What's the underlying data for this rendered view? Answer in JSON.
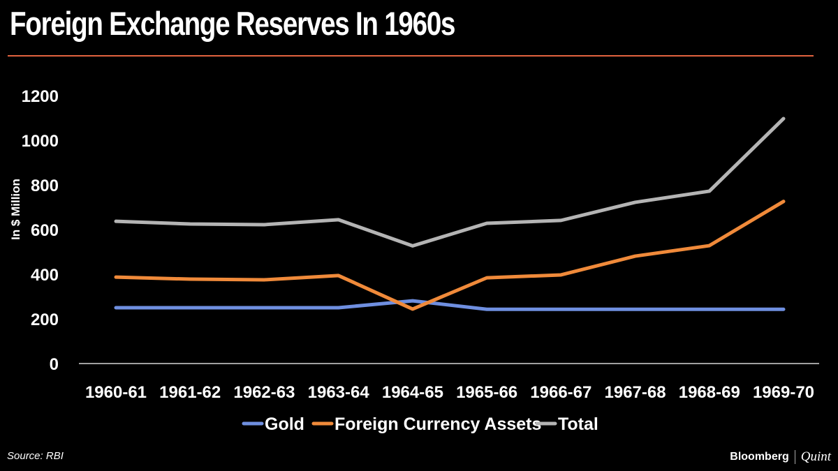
{
  "header": {
    "title": "Foreign Exchange Reserves In 1960s"
  },
  "footer": {
    "source": "Source: RBI",
    "brand_left": "Bloomberg",
    "brand_right": "Quint"
  },
  "colors": {
    "gold": "#6f8fe0",
    "fca": "#f08a3a",
    "total": "#b4b4b4",
    "rule": "#e2633f",
    "background": "#000000"
  },
  "chart_data": {
    "type": "line",
    "title": "Foreign Exchange Reserves In 1960s",
    "xlabel": "",
    "ylabel": "In $ Million",
    "ylim": [
      0,
      1200
    ],
    "yticks": [
      0,
      200,
      400,
      600,
      800,
      1000,
      1200
    ],
    "grid": false,
    "legend_position": "bottom",
    "categories": [
      "1960-61",
      "1961-62",
      "1962-63",
      "1963-64",
      "1964-65",
      "1965-66",
      "1966-67",
      "1967-68",
      "1968-69",
      "1969-70"
    ],
    "series": [
      {
        "name": "Gold",
        "color": "#6f8fe0",
        "values": [
          250,
          250,
          250,
          250,
          281,
          243,
          243,
          243,
          243,
          243
        ]
      },
      {
        "name": "Foreign Currency Assets",
        "color": "#f08a3a",
        "values": [
          387,
          378,
          375,
          394,
          244,
          384,
          397,
          481,
          528,
          726
        ]
      },
      {
        "name": "Total",
        "color": "#b4b4b4",
        "values": [
          637,
          625,
          622,
          644,
          527,
          628,
          641,
          722,
          772,
          1097
        ]
      }
    ]
  }
}
